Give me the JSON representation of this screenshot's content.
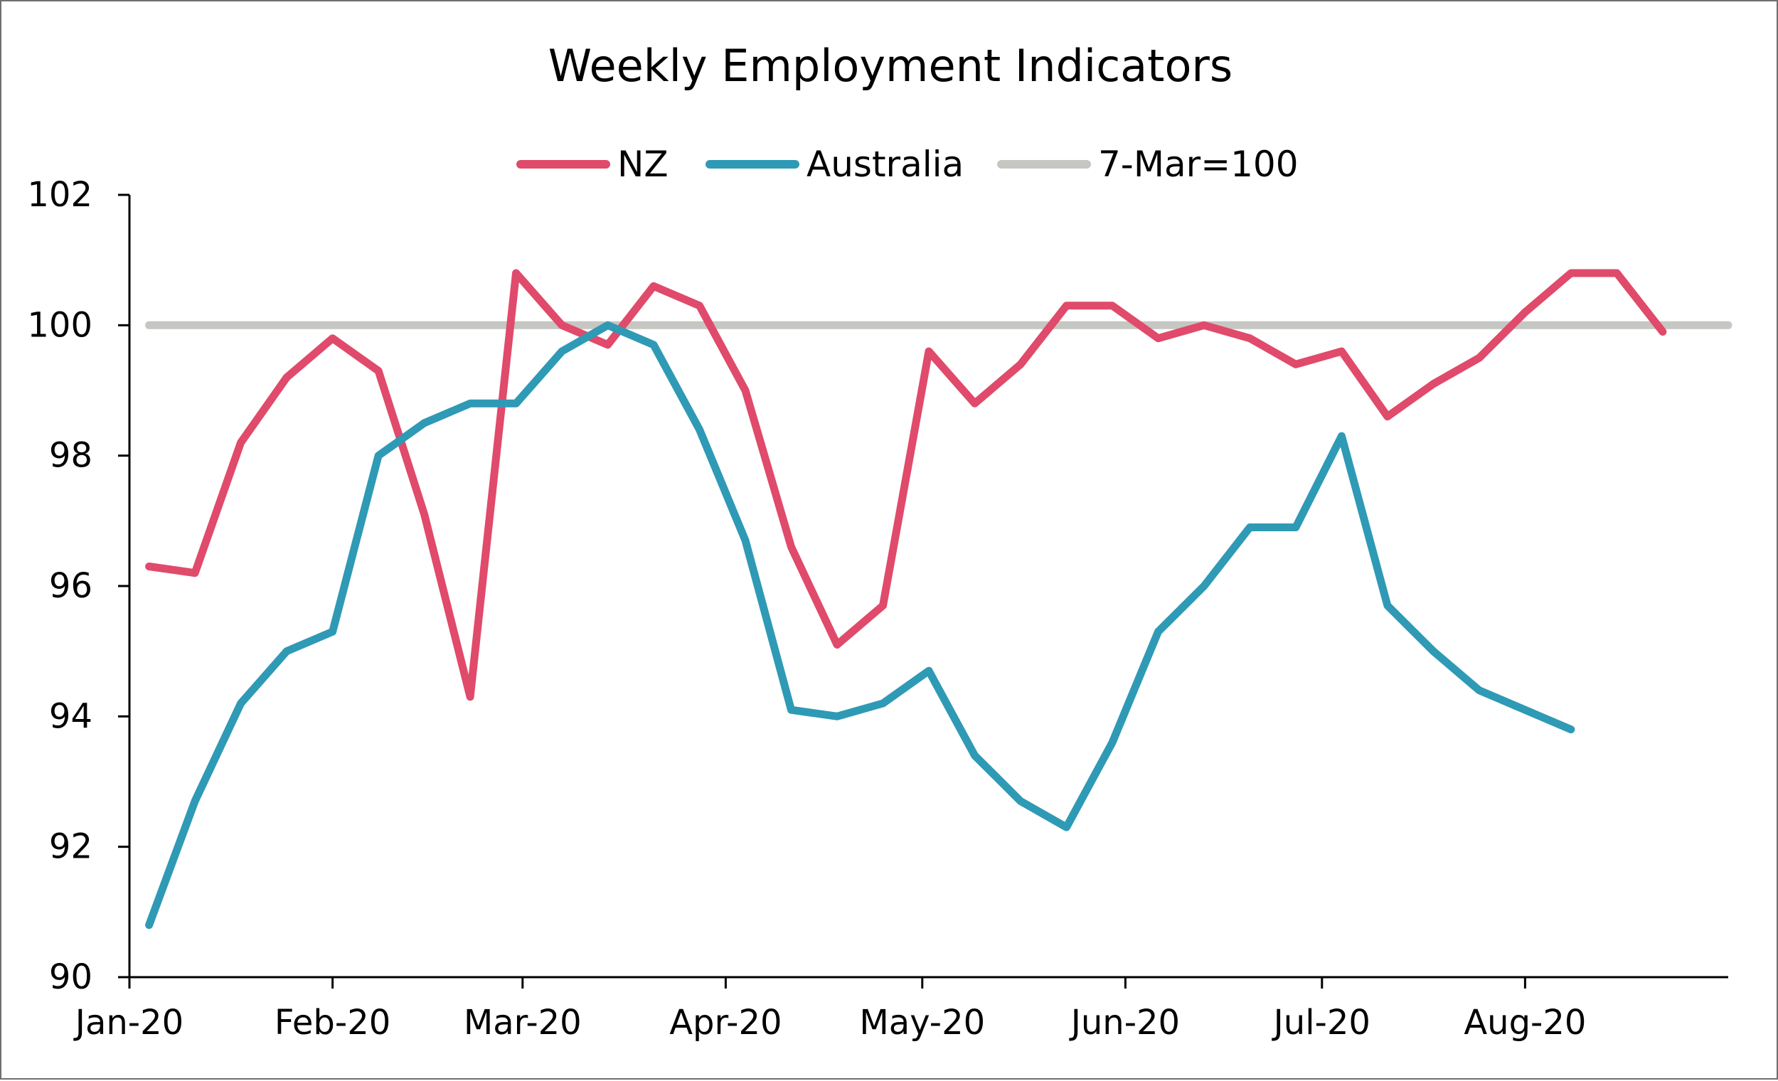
{
  "chart_data": {
    "type": "line",
    "title": "Weekly Employment Indicators",
    "xlabel": "",
    "ylabel": "",
    "ylim": [
      90,
      102
    ],
    "yticks": [
      90,
      92,
      94,
      96,
      98,
      100,
      102
    ],
    "ytick_labels": [
      "90",
      "92",
      "94",
      "96",
      "98",
      "100",
      "102"
    ],
    "x_range": [
      "2020-01-01",
      "2020-09-01"
    ],
    "xtick_labels": [
      "Jan-20",
      "Feb-20",
      "Mar-20",
      "Apr-20",
      "May-20",
      "Jun-20",
      "Jul-20",
      "Aug-20"
    ],
    "xtick_dates": [
      "2020-01-01",
      "2020-02-01",
      "2020-03-01",
      "2020-04-01",
      "2020-05-01",
      "2020-06-01",
      "2020-07-01",
      "2020-08-01"
    ],
    "legend_position": "top-center",
    "grid": false,
    "series": [
      {
        "name": "NZ",
        "color": "#e04a6b",
        "x": [
          "2020-01-04",
          "2020-01-11",
          "2020-01-18",
          "2020-01-25",
          "2020-02-01",
          "2020-02-08",
          "2020-02-15",
          "2020-02-22",
          "2020-02-29",
          "2020-03-07",
          "2020-03-14",
          "2020-03-21",
          "2020-03-28",
          "2020-04-04",
          "2020-04-11",
          "2020-04-18",
          "2020-04-25",
          "2020-05-02",
          "2020-05-09",
          "2020-05-16",
          "2020-05-23",
          "2020-05-30",
          "2020-06-06",
          "2020-06-13",
          "2020-06-20",
          "2020-06-27",
          "2020-07-04",
          "2020-07-11",
          "2020-07-18",
          "2020-07-25",
          "2020-08-01",
          "2020-08-08",
          "2020-08-15",
          "2020-08-22"
        ],
        "values": [
          96.3,
          96.2,
          98.2,
          99.2,
          99.8,
          99.3,
          97.1,
          94.3,
          100.8,
          100.0,
          99.7,
          100.6,
          100.3,
          99.0,
          96.6,
          95.1,
          95.7,
          99.6,
          98.8,
          99.4,
          100.3,
          100.3,
          99.8,
          100.0,
          99.8,
          99.4,
          99.6,
          98.6,
          99.1,
          99.5,
          100.2,
          100.8,
          100.8,
          99.9
        ]
      },
      {
        "name": "Australia",
        "color": "#2f9ab5",
        "x": [
          "2020-01-04",
          "2020-01-11",
          "2020-01-18",
          "2020-01-25",
          "2020-02-01",
          "2020-02-08",
          "2020-02-15",
          "2020-02-22",
          "2020-02-29",
          "2020-03-07",
          "2020-03-14",
          "2020-03-21",
          "2020-03-28",
          "2020-04-04",
          "2020-04-11",
          "2020-04-18",
          "2020-04-25",
          "2020-05-02",
          "2020-05-09",
          "2020-05-16",
          "2020-05-23",
          "2020-05-30",
          "2020-06-06",
          "2020-06-13",
          "2020-06-20",
          "2020-06-27",
          "2020-07-04",
          "2020-07-11",
          "2020-07-18",
          "2020-07-25",
          "2020-08-01",
          "2020-08-08"
        ],
        "values": [
          90.8,
          92.7,
          94.2,
          95.0,
          95.3,
          98.0,
          98.5,
          98.8,
          98.8,
          99.6,
          100.0,
          99.7,
          98.4,
          96.7,
          94.1,
          94.0,
          94.2,
          94.7,
          93.4,
          92.7,
          92.3,
          93.6,
          95.3,
          96.0,
          96.9,
          96.9,
          98.3,
          95.7,
          95.0,
          94.4,
          94.1,
          93.8
        ]
      },
      {
        "name": "7-Mar=100",
        "color": "#c6c6c2",
        "x": [
          "2020-01-04",
          "2020-09-01"
        ],
        "values": [
          100,
          100
        ]
      }
    ]
  }
}
